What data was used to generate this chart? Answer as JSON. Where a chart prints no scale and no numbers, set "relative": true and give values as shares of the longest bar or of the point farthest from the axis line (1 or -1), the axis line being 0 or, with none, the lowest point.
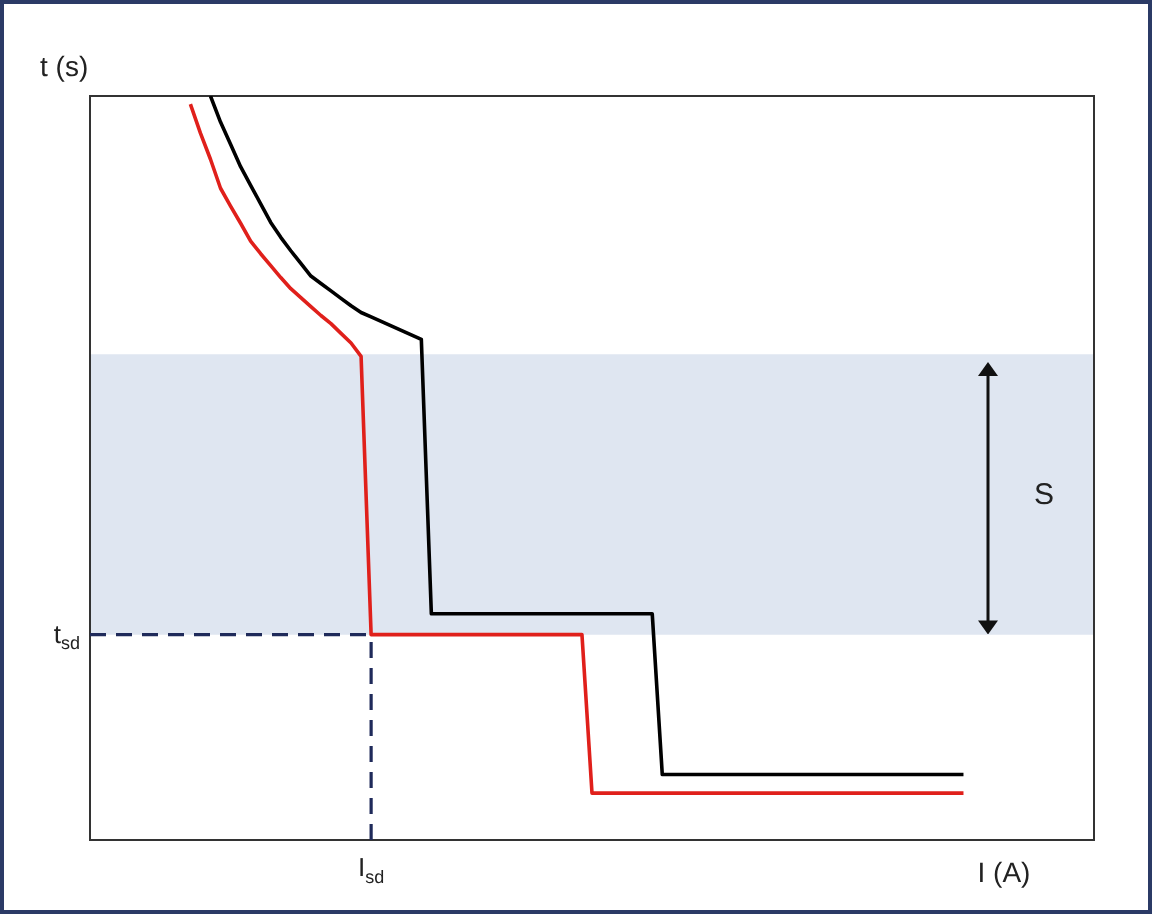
{
  "chart_data": {
    "type": "line",
    "relative": true,
    "xlabel": "I (A)",
    "ylabel": "t (s)",
    "grid": false,
    "legend": false,
    "marker": "none",
    "line_style": "solid",
    "categories": [
      null,
      null,
      null,
      null,
      null,
      null,
      null,
      null,
      null,
      null,
      null,
      null,
      null,
      null,
      null,
      null,
      null,
      null,
      null,
      null,
      null,
      null,
      null,
      null,
      null,
      null,
      null,
      null,
      null,
      null,
      null,
      null,
      null,
      null,
      null,
      null,
      null,
      null,
      null,
      null,
      null,
      null,
      null,
      null,
      null,
      null,
      null,
      null,
      null,
      null,
      null,
      null,
      null,
      null,
      null,
      null,
      null,
      null,
      null,
      null,
      null,
      null,
      null,
      null,
      null,
      null,
      null,
      null,
      null,
      null,
      null,
      null,
      null,
      null,
      null,
      null,
      null,
      null,
      null,
      null,
      null,
      null,
      null,
      null,
      null,
      null,
      null,
      null,
      null,
      null,
      null,
      null,
      null,
      null,
      null,
      null,
      null,
      null,
      null,
      null,
      null
    ],
    "series": [
      {
        "color": "#000000",
        "values": [
          null,
          null,
          null,
          null,
          null,
          null,
          null,
          null,
          null,
          null,
          null,
          null,
          1.0,
          0.965,
          0.935,
          0.905,
          0.88,
          0.855,
          0.83,
          0.81,
          0.792,
          0.775,
          0.758,
          0.748,
          0.738,
          0.728,
          0.718,
          0.709,
          0.703,
          0.697,
          0.691,
          0.685,
          0.679,
          0.673,
          0.304,
          0.304,
          0.304,
          0.304,
          0.304,
          0.304,
          0.304,
          0.304,
          0.304,
          0.304,
          0.304,
          0.304,
          0.304,
          0.304,
          0.304,
          0.304,
          0.304,
          0.304,
          0.304,
          0.304,
          0.304,
          0.304,
          0.304,
          0.088,
          0.088,
          0.088,
          0.088,
          0.088,
          0.088,
          0.088,
          0.088,
          0.088,
          0.088,
          0.088,
          0.088,
          0.088,
          0.088,
          0.088,
          0.088,
          0.088,
          0.088,
          0.088,
          0.088,
          0.088,
          0.088,
          0.088,
          0.088,
          0.088,
          0.088,
          0.088,
          0.088,
          0.088,
          0.088,
          0.088,
          null,
          null,
          null,
          null,
          null,
          null,
          null,
          null,
          null,
          null,
          null,
          null,
          null
        ]
      },
      {
        "color": "#e0201b",
        "values": [
          null,
          null,
          null,
          null,
          null,
          null,
          null,
          null,
          null,
          null,
          0.989,
          0.95,
          0.915,
          0.876,
          0.852,
          0.829,
          0.805,
          0.788,
          0.772,
          0.756,
          0.741,
          0.729,
          0.717,
          0.705,
          0.694,
          0.681,
          0.668,
          0.65,
          0.276,
          0.276,
          0.276,
          0.276,
          0.276,
          0.276,
          0.276,
          0.276,
          0.276,
          0.276,
          0.276,
          0.276,
          0.276,
          0.276,
          0.276,
          0.276,
          0.276,
          0.276,
          0.276,
          0.276,
          0.276,
          0.276,
          0.063,
          0.063,
          0.063,
          0.063,
          0.063,
          0.063,
          0.063,
          0.063,
          0.063,
          0.063,
          0.063,
          0.063,
          0.063,
          0.063,
          0.063,
          0.063,
          0.063,
          0.063,
          0.063,
          0.063,
          0.063,
          0.063,
          0.063,
          0.063,
          0.063,
          0.063,
          0.063,
          0.063,
          0.063,
          0.063,
          0.063,
          0.063,
          0.063,
          0.063,
          0.063,
          0.063,
          0.063,
          0.063,
          null,
          null,
          null,
          null,
          null,
          null,
          null,
          null,
          null,
          null,
          null,
          null,
          null
        ]
      }
    ],
    "bands": [
      {
        "axis": "y",
        "from": 0.276,
        "to": 0.653,
        "label": "S",
        "color": "#dfe6f1"
      }
    ],
    "ref_lines": [
      {
        "axis": "y",
        "value": 0.276,
        "label": "t$_{sd}$",
        "color": "#1f2a5a",
        "line_style": "dashed"
      },
      {
        "axis": "x",
        "label": "I$_{sd}$",
        "color": "#1f2a5a",
        "line_style": "dashed"
      }
    ]
  }
}
